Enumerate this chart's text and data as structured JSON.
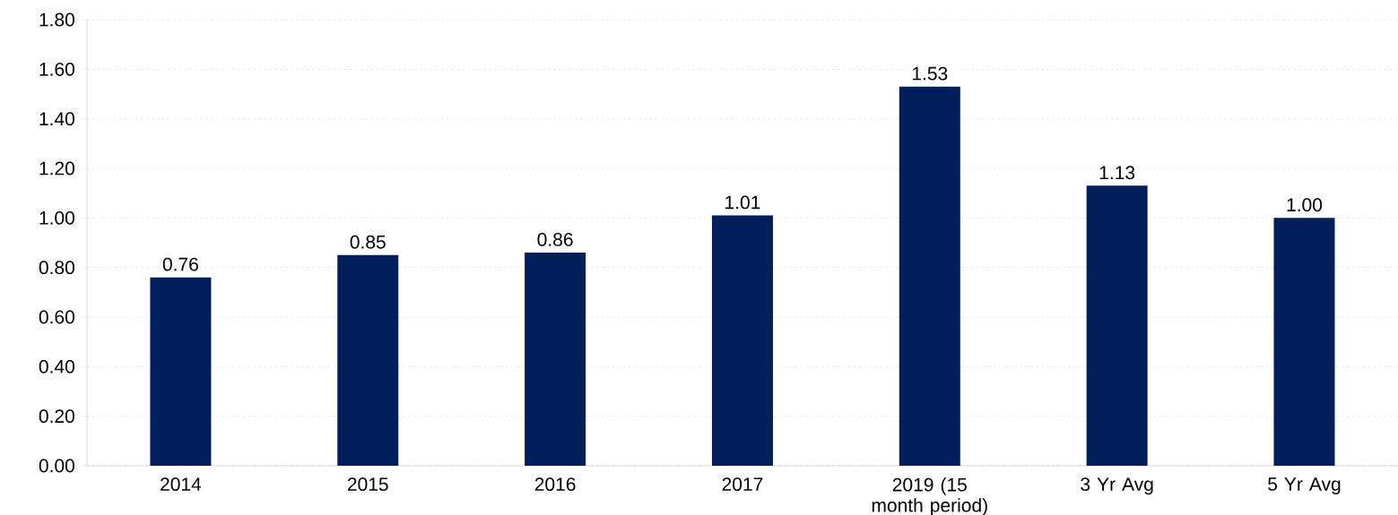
{
  "chart_data": {
    "type": "bar",
    "categories": [
      "2014",
      "2015",
      "2016",
      "2017",
      "2019 (15 month period)",
      "3 Yr Avg",
      "5 Yr Avg"
    ],
    "values": [
      0.76,
      0.85,
      0.86,
      1.01,
      1.53,
      1.13,
      1.0
    ],
    "value_labels": [
      "0.76",
      "0.85",
      "0.86",
      "1.01",
      "1.53",
      "1.13",
      "1.00"
    ],
    "color": "#001f5b",
    "ylim": [
      0,
      1.8
    ],
    "yticks": [
      {
        "value": 0,
        "label": "0.00"
      },
      {
        "value": 0.2,
        "label": "0.20"
      },
      {
        "value": 0.4,
        "label": "0.40"
      },
      {
        "value": 0.6,
        "label": "0.60"
      },
      {
        "value": 0.8,
        "label": "0.80"
      },
      {
        "value": 1.0,
        "label": "1.00"
      },
      {
        "value": 1.2,
        "label": "1.20"
      },
      {
        "value": 1.4,
        "label": "1.40"
      },
      {
        "value": 1.6,
        "label": "1.60"
      },
      {
        "value": 1.8,
        "label": "1.80"
      }
    ],
    "grid": "y"
  }
}
